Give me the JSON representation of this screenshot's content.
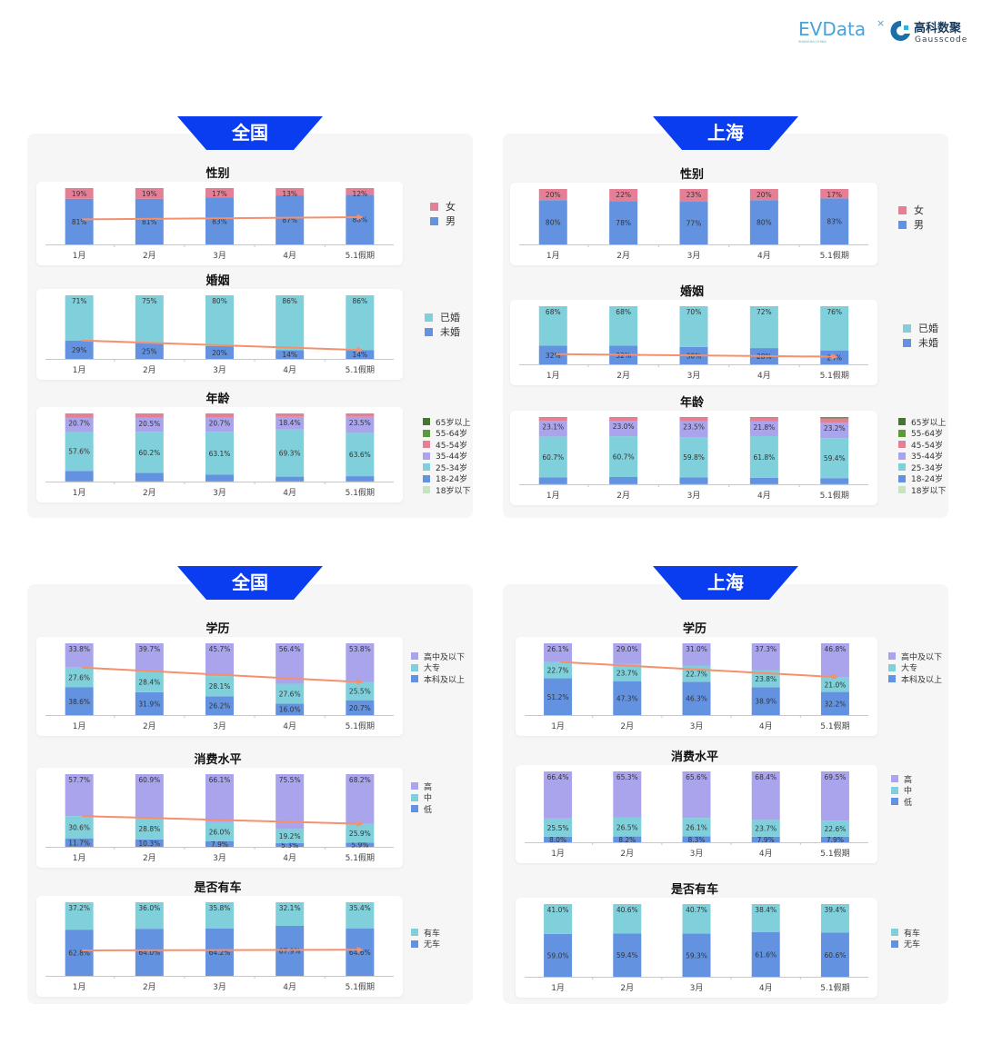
{
  "logos": {
    "evdata": "EVData",
    "evdata_sub": "SHANGHAI CHINA",
    "gausscode_cn": "高科数聚",
    "gausscode_en": "Gausscode"
  },
  "colors": {
    "header": "#0a3cf0",
    "trend_arrow": "#f4906e"
  },
  "chart_data": [
    {
      "panel": "全国",
      "charts": [
        {
          "type": "bar",
          "stacked": true,
          "title": "性别",
          "decimals": 0,
          "categories": [
            "1月",
            "2月",
            "3月",
            "4月",
            "5.1假期"
          ],
          "labeled_series": [
            0,
            1
          ],
          "trend_series": 0,
          "series": [
            {
              "name": "男",
              "color": "#6393e0",
              "values": [
                81,
                81,
                83,
                87,
                88
              ]
            },
            {
              "name": "女",
              "color": "#e57f95",
              "values": [
                19,
                19,
                17,
                13,
                12
              ]
            }
          ]
        },
        {
          "type": "bar",
          "stacked": true,
          "title": "婚姻",
          "decimals": 0,
          "categories": [
            "1月",
            "2月",
            "3月",
            "4月",
            "5.1假期"
          ],
          "labeled_series": [
            0,
            1
          ],
          "trend_series": 0,
          "series": [
            {
              "name": "未婚",
              "color": "#6393e0",
              "values": [
                29,
                25,
                20,
                14,
                14
              ]
            },
            {
              "name": "已婚",
              "color": "#7fd0da",
              "values": [
                71,
                75,
                80,
                86,
                86
              ]
            }
          ]
        },
        {
          "type": "bar",
          "stacked": true,
          "title": "年龄",
          "decimals": 1,
          "categories": [
            "1月",
            "2月",
            "3月",
            "4月",
            "5.1假期"
          ],
          "labeled_series": [
            2,
            3
          ],
          "trend_series": null,
          "series": [
            {
              "name": "18岁以下",
              "color": "#c9e2c4",
              "values": [
                0.2,
                0.2,
                0.2,
                0.2,
                0.2
              ]
            },
            {
              "name": "18-24岁",
              "color": "#6393e0",
              "values": [
                15.5,
                12.6,
                9.8,
                7.0,
                7.7
              ]
            },
            {
              "name": "25-34岁",
              "color": "#7fd0da",
              "values": [
                57.6,
                60.2,
                63.1,
                69.3,
                63.6
              ]
            },
            {
              "name": "35-44岁",
              "color": "#aaa4ec",
              "values": [
                20.7,
                20.5,
                20.7,
                18.4,
                23.5
              ]
            },
            {
              "name": "45-54岁",
              "color": "#e57f95",
              "values": [
                5.6,
                6.1,
                5.8,
                4.8,
                4.6
              ]
            },
            {
              "name": "55-64岁",
              "color": "#5a9a3a",
              "values": [
                0.3,
                0.3,
                0.3,
                0.2,
                0.3
              ]
            },
            {
              "name": "65岁以上",
              "color": "#457530",
              "values": [
                0.1,
                0.1,
                0.1,
                0.1,
                0.1
              ]
            }
          ]
        }
      ]
    },
    {
      "panel": "上海",
      "charts": [
        {
          "type": "bar",
          "stacked": true,
          "title": "性别",
          "decimals": 0,
          "categories": [
            "1月",
            "2月",
            "3月",
            "4月",
            "5.1假期"
          ],
          "labeled_series": [
            0,
            1
          ],
          "trend_series": null,
          "series": [
            {
              "name": "男",
              "color": "#6393e0",
              "values": [
                80,
                78,
                77,
                80,
                83
              ]
            },
            {
              "name": "女",
              "color": "#e57f95",
              "values": [
                20,
                22,
                23,
                20,
                17
              ]
            }
          ]
        },
        {
          "type": "bar",
          "stacked": true,
          "title": "婚姻",
          "decimals": 0,
          "categories": [
            "1月",
            "2月",
            "3月",
            "4月",
            "5.1假期"
          ],
          "labeled_series": [
            0,
            1
          ],
          "trend_series": 0,
          "series": [
            {
              "name": "未婚",
              "color": "#6393e0",
              "values": [
                32,
                32,
                30,
                28,
                24
              ]
            },
            {
              "name": "已婚",
              "color": "#7fd0da",
              "values": [
                68,
                68,
                70,
                72,
                76
              ]
            }
          ]
        },
        {
          "type": "bar",
          "stacked": true,
          "title": "年龄",
          "decimals": 1,
          "categories": [
            "1月",
            "2月",
            "3月",
            "4月",
            "5.1假期"
          ],
          "labeled_series": [
            2,
            3
          ],
          "trend_series": null,
          "series": [
            {
              "name": "18岁以下",
              "color": "#c9e2c4",
              "values": [
                0.2,
                0.2,
                0.2,
                0.2,
                0.2
              ]
            },
            {
              "name": "18-24岁",
              "color": "#6393e0",
              "values": [
                10.2,
                10.6,
                10.2,
                9.6,
                9.0
              ]
            },
            {
              "name": "25-34岁",
              "color": "#7fd0da",
              "values": [
                60.7,
                60.7,
                59.8,
                61.8,
                59.4
              ]
            },
            {
              "name": "35-44岁",
              "color": "#aaa4ec",
              "values": [
                23.1,
                23.0,
                23.5,
                21.8,
                23.2
              ]
            },
            {
              "name": "45-54岁",
              "color": "#e57f95",
              "values": [
                5.2,
                4.9,
                5.7,
                5.9,
                6.2
              ]
            },
            {
              "name": "55-64岁",
              "color": "#5a9a3a",
              "values": [
                0.5,
                0.5,
                0.5,
                0.6,
                1.5
              ]
            },
            {
              "name": "65岁以上",
              "color": "#457530",
              "values": [
                0.1,
                0.1,
                0.1,
                0.1,
                0.5
              ]
            }
          ]
        }
      ]
    },
    {
      "panel": "全国",
      "charts": [
        {
          "type": "bar",
          "stacked": true,
          "title": "学历",
          "decimals": 1,
          "categories": [
            "1月",
            "2月",
            "3月",
            "4月",
            "5.1假期"
          ],
          "labeled_series": [
            0,
            1,
            2
          ],
          "trend_series": 1,
          "series": [
            {
              "name": "本科及以上",
              "color": "#6393e0",
              "values": [
                38.6,
                31.9,
                26.2,
                16.0,
                20.7
              ]
            },
            {
              "name": "大专",
              "color": "#7fd0da",
              "values": [
                27.6,
                28.4,
                28.1,
                27.6,
                25.5
              ]
            },
            {
              "name": "高中及以下",
              "color": "#aaa4ec",
              "values": [
                33.8,
                39.7,
                45.7,
                56.4,
                53.8
              ]
            }
          ]
        },
        {
          "type": "bar",
          "stacked": true,
          "title": "消费水平",
          "decimals": 1,
          "categories": [
            "1月",
            "2月",
            "3月",
            "4月",
            "5.1假期"
          ],
          "labeled_series": [
            0,
            1,
            2
          ],
          "trend_series": 1,
          "series": [
            {
              "name": "低",
              "color": "#6393e0",
              "values": [
                11.7,
                10.3,
                7.9,
                5.3,
                5.9
              ]
            },
            {
              "name": "中",
              "color": "#7fd0da",
              "values": [
                30.6,
                28.8,
                26.0,
                19.2,
                25.9
              ]
            },
            {
              "name": "高",
              "color": "#aaa4ec",
              "values": [
                57.7,
                60.9,
                66.1,
                75.5,
                68.2
              ]
            }
          ]
        },
        {
          "type": "bar",
          "stacked": true,
          "title": "是否有车",
          "decimals": 1,
          "categories": [
            "1月",
            "2月",
            "3月",
            "4月",
            "5.1假期"
          ],
          "labeled_series": [
            0,
            1
          ],
          "trend_series": 0,
          "series": [
            {
              "name": "无车",
              "color": "#6393e0",
              "values": [
                62.8,
                64.0,
                64.2,
                67.9,
                64.6
              ]
            },
            {
              "name": "有车",
              "color": "#7fd0da",
              "values": [
                37.2,
                36.0,
                35.8,
                32.1,
                35.4
              ]
            }
          ]
        }
      ]
    },
    {
      "panel": "上海",
      "charts": [
        {
          "type": "bar",
          "stacked": true,
          "title": "学历",
          "decimals": 1,
          "categories": [
            "1月",
            "2月",
            "3月",
            "4月",
            "5.1假期"
          ],
          "labeled_series": [
            0,
            1,
            2
          ],
          "trend_series": 1,
          "series": [
            {
              "name": "本科及以上",
              "color": "#6393e0",
              "values": [
                51.2,
                47.3,
                46.3,
                38.9,
                32.2
              ]
            },
            {
              "name": "大专",
              "color": "#7fd0da",
              "values": [
                22.7,
                23.7,
                22.7,
                23.8,
                21.0
              ]
            },
            {
              "name": "高中及以下",
              "color": "#aaa4ec",
              "values": [
                26.1,
                29.0,
                31.0,
                37.3,
                46.8
              ]
            }
          ]
        },
        {
          "type": "bar",
          "stacked": true,
          "title": "消费水平",
          "decimals": 1,
          "categories": [
            "1月",
            "2月",
            "3月",
            "4月",
            "5.1假期"
          ],
          "labeled_series": [
            0,
            1,
            2
          ],
          "trend_series": null,
          "series": [
            {
              "name": "低",
              "color": "#6393e0",
              "values": [
                8.0,
                8.2,
                8.3,
                7.9,
                7.9
              ]
            },
            {
              "name": "中",
              "color": "#7fd0da",
              "values": [
                25.5,
                26.5,
                26.1,
                23.7,
                22.6
              ]
            },
            {
              "name": "高",
              "color": "#aaa4ec",
              "values": [
                66.4,
                65.3,
                65.6,
                68.4,
                69.5
              ]
            }
          ]
        },
        {
          "type": "bar",
          "stacked": true,
          "title": "是否有车",
          "decimals": 1,
          "categories": [
            "1月",
            "2月",
            "3月",
            "4月",
            "5.1假期"
          ],
          "labeled_series": [
            0,
            1
          ],
          "trend_series": null,
          "series": [
            {
              "name": "无车",
              "color": "#6393e0",
              "values": [
                59.0,
                59.4,
                59.3,
                61.6,
                60.6
              ]
            },
            {
              "name": "有车",
              "color": "#7fd0da",
              "values": [
                41.0,
                40.6,
                40.7,
                38.4,
                39.4
              ]
            }
          ]
        }
      ]
    }
  ]
}
